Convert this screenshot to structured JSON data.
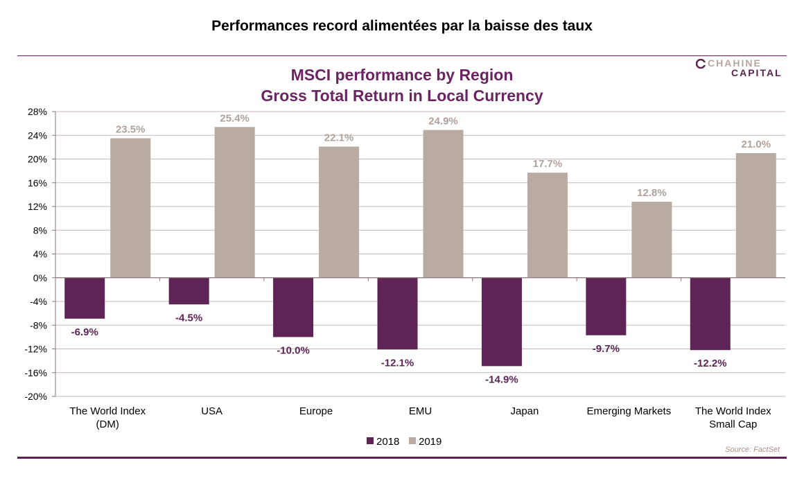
{
  "page": {
    "title": "Performances record alimentées par la baisse des taux",
    "logo_line1": "CHAHINE",
    "logo_line2": "CAPITAL",
    "source": "Source: FactSet"
  },
  "colors": {
    "series_2018": "#5f2456",
    "series_2019": "#b9aaa2",
    "label_2019": "#b0a29b",
    "rule": "#5b2150",
    "title": "#6a2461"
  },
  "chart_data": {
    "type": "bar",
    "title_lines": [
      "MSCI performance by Region",
      "Gross Total Return in Local Currency"
    ],
    "categories": [
      [
        "The World Index",
        "(DM)"
      ],
      [
        "USA"
      ],
      [
        "Europe"
      ],
      [
        "EMU"
      ],
      [
        "Japan"
      ],
      [
        "Emerging Markets"
      ],
      [
        "The World Index",
        "Small Cap"
      ]
    ],
    "series": [
      {
        "name": "2018",
        "values": [
          -6.9,
          -4.5,
          -10.0,
          -12.1,
          -14.9,
          -9.7,
          -12.2
        ],
        "labels": [
          "-6.9%",
          "-4.5%",
          "-10.0%",
          "-12.1%",
          "-14.9%",
          "-9.7%",
          "-12.2%"
        ]
      },
      {
        "name": "2019",
        "values": [
          23.5,
          25.4,
          22.1,
          24.9,
          17.7,
          12.8,
          21.0
        ],
        "labels": [
          "23.5%",
          "25.4%",
          "22.1%",
          "24.9%",
          "17.7%",
          "12.8%",
          "21.0%"
        ]
      }
    ],
    "ylim": [
      -20,
      28
    ],
    "yticks": [
      28,
      24,
      20,
      16,
      12,
      8,
      4,
      0,
      -4,
      -8,
      -12,
      -16,
      -20
    ],
    "ytick_labels": [
      "28%",
      "24%",
      "20%",
      "16%",
      "12%",
      "8%",
      "4%",
      "0%",
      "-4%",
      "-8%",
      "-12%",
      "-16%",
      "-20%"
    ],
    "grid": true,
    "legend_position": "bottom-center"
  }
}
